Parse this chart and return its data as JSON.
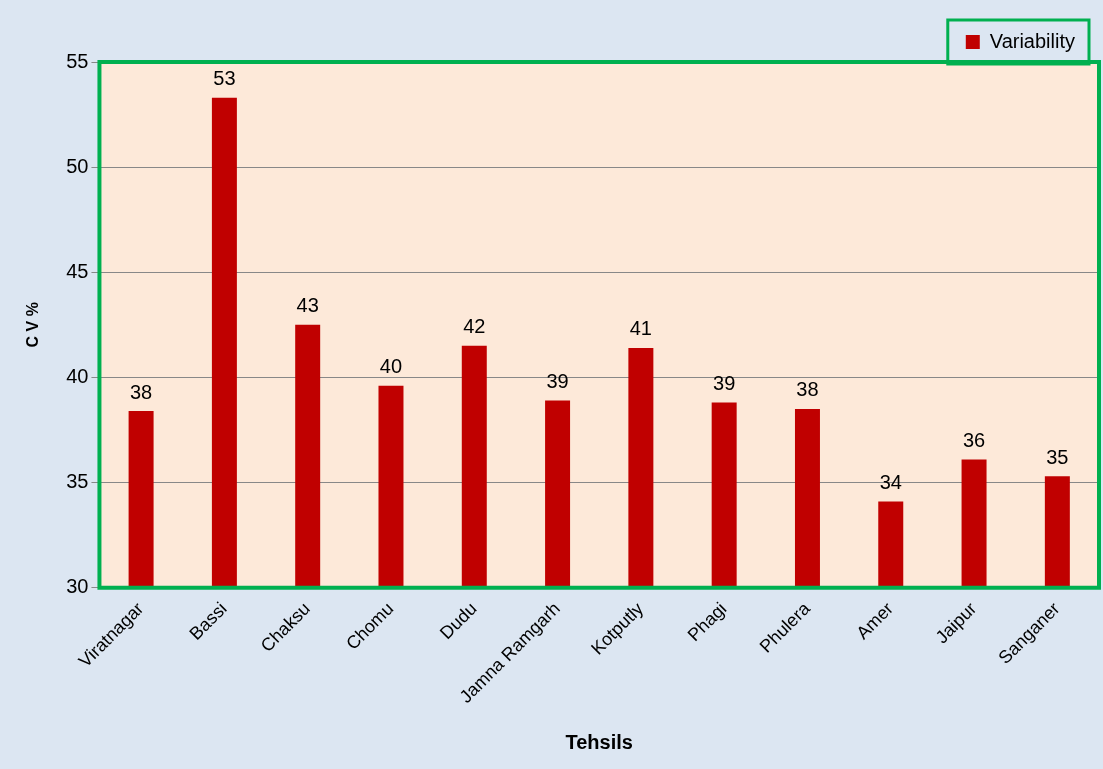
{
  "chart_data": {
    "type": "bar",
    "xlabel": "Tehsils",
    "ylabel": "C V %",
    "categories": [
      "Viratnagar",
      "Bassi",
      "Chaksu",
      "Chomu",
      "Dudu",
      "Jamna Ramgarh",
      "Kotputly",
      "Phagi",
      "Phulera",
      "Amer",
      "Jaipur",
      "Sanganer"
    ],
    "series": [
      {
        "name": "Variability",
        "color": "#c00000",
        "values": [
          38.4,
          53.3,
          42.5,
          39.6,
          41.5,
          38.9,
          41.4,
          38.8,
          38.5,
          34.1,
          36.1,
          35.3
        ],
        "value_labels": [
          "38",
          "53",
          "43",
          "40",
          "42",
          "39",
          "41",
          "39",
          "38",
          "34",
          "36",
          "35"
        ]
      }
    ],
    "ylim": [
      30,
      55
    ],
    "yticks": [
      30,
      35,
      40,
      45,
      50,
      55
    ],
    "grid": "y",
    "legend": "top right"
  }
}
